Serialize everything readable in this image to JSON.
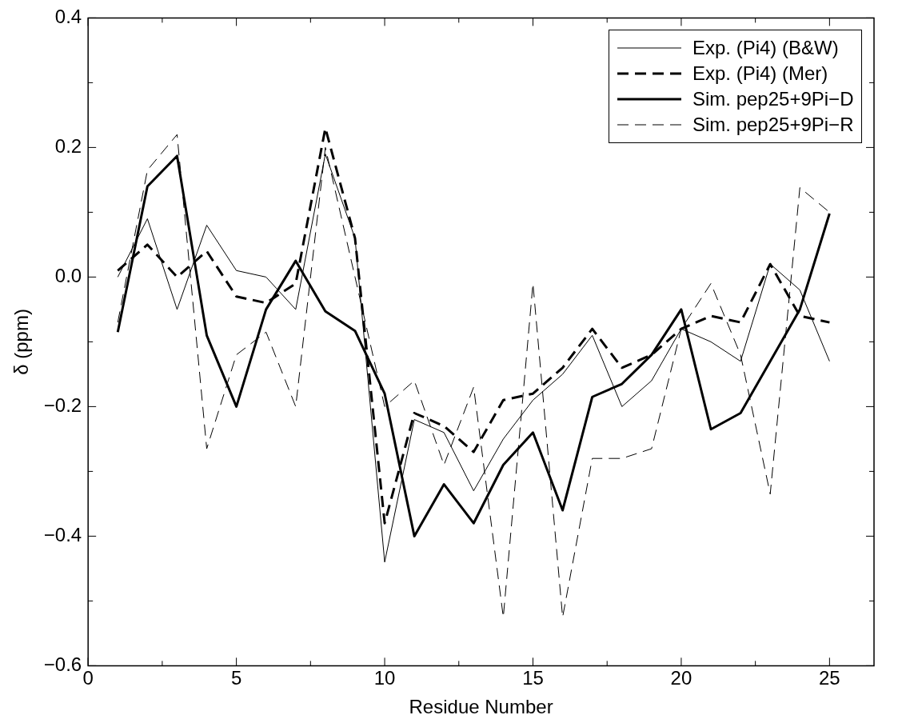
{
  "chart_data": {
    "type": "line",
    "xlabel": "Residue Number",
    "ylabel": "δ (ppm)",
    "x": [
      1,
      2,
      3,
      4,
      5,
      6,
      7,
      8,
      9,
      10,
      11,
      12,
      13,
      14,
      15,
      16,
      17,
      18,
      19,
      20,
      21,
      22,
      23,
      24,
      25
    ],
    "series": [
      {
        "name": "Exp. (Pi4) (B&W)",
        "color": "#000000",
        "line_style": "solid",
        "values": [
          0.0,
          0.09,
          -0.05,
          0.08,
          0.01,
          0.0,
          -0.05,
          0.19,
          0.06,
          -0.44,
          -0.22,
          -0.24,
          -0.33,
          -0.25,
          -0.19,
          -0.15,
          -0.09,
          -0.2,
          -0.16,
          -0.08,
          -0.1,
          -0.13,
          0.02,
          -0.02,
          -0.13
        ]
      },
      {
        "name": "Exp. (Pi4) (Mer)",
        "color": "#000000",
        "line_style": "dashed",
        "values": [
          0.01,
          0.05,
          0.0,
          0.04,
          -0.03,
          -0.04,
          -0.01,
          0.23,
          0.06,
          -0.38,
          -0.21,
          -0.23,
          -0.27,
          -0.19,
          -0.18,
          -0.14,
          -0.08,
          -0.14,
          -0.12,
          -0.08,
          -0.06,
          -0.07,
          0.02,
          -0.06,
          -0.07
        ]
      },
      {
        "name": "Sim. pep25+9Pi−D",
        "color": "#000000",
        "line_style": "solid",
        "values": [
          -0.085,
          0.14,
          0.187,
          -0.09,
          -0.2,
          -0.05,
          0.025,
          -0.053,
          -0.083,
          -0.18,
          -0.4,
          -0.32,
          -0.38,
          -0.29,
          -0.24,
          -0.36,
          -0.185,
          -0.165,
          -0.12,
          -0.05,
          -0.235,
          -0.21,
          -0.13,
          -0.05,
          0.098
        ]
      },
      {
        "name": "Sim. pep25+9Pi−R",
        "color": "#000000",
        "line_style": "dashed",
        "values": [
          -0.07,
          0.165,
          0.22,
          -0.265,
          -0.12,
          -0.085,
          -0.2,
          0.2,
          0.0,
          -0.2,
          -0.16,
          -0.29,
          -0.17,
          -0.525,
          -0.01,
          -0.525,
          -0.28,
          -0.28,
          -0.265,
          -0.08,
          -0.01,
          -0.12,
          -0.335,
          0.138,
          0.1
        ]
      }
    ],
    "xlim": [
      0,
      26.5
    ],
    "xticks": [
      0,
      {
        "value": 2.5,
        "label": null
      },
      5,
      {
        "value": 7.5,
        "label": null
      },
      10,
      {
        "value": 12.5,
        "label": null
      },
      15,
      {
        "value": 17.5,
        "label": null
      },
      20,
      {
        "value": 22.5,
        "label": null
      },
      25
    ],
    "ylim": [
      -0.6,
      0.4
    ],
    "yticks": [
      {
        "value": -0.6,
        "label": "−0.6"
      },
      {
        "value": -0.5,
        "label": null
      },
      {
        "value": -0.4,
        "label": "−0.4"
      },
      {
        "value": -0.3,
        "label": null
      },
      {
        "value": -0.2,
        "label": "−0.2"
      },
      {
        "value": -0.1,
        "label": null
      },
      {
        "value": 0,
        "label": "0.0"
      },
      {
        "value": 0.1,
        "label": null
      },
      {
        "value": 0.2,
        "label": "0.2"
      },
      {
        "value": 0.3,
        "label": null
      },
      {
        "value": 0.4,
        "label": "0.4"
      }
    ],
    "grid": false,
    "legend": "top right",
    "marker": "none"
  }
}
